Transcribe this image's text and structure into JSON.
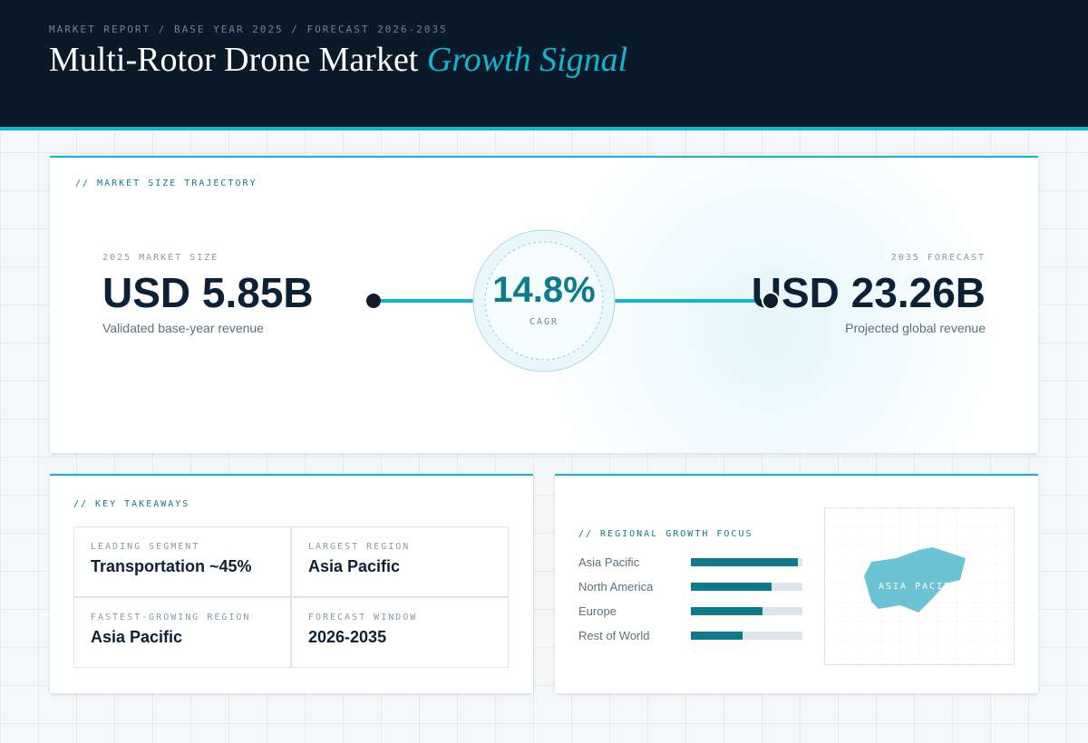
{
  "header": {
    "eyebrow": "MARKET REPORT / BASE YEAR 2025 / FORECAST 2026-2035",
    "title": "Multi-Rotor Drone Market",
    "title_accent": "Growth Signal"
  },
  "trajectory": {
    "label": "// MARKET SIZE TRAJECTORY",
    "start": {
      "label": "2025 MARKET SIZE",
      "value": "USD 5.85B",
      "caption": "Validated base-year revenue"
    },
    "cagr": {
      "value": "14.8%",
      "label": "CAGR"
    },
    "end": {
      "label": "2035 FORECAST",
      "value": "USD 23.26B",
      "caption": "Projected global revenue"
    }
  },
  "takeaways": {
    "label": "// KEY TAKEAWAYS",
    "cells": [
      {
        "label": "LEADING SEGMENT",
        "value": "Transportation ~45%"
      },
      {
        "label": "LARGEST REGION",
        "value": "Asia Pacific"
      },
      {
        "label": "FASTEST-GROWING REGION",
        "value": "Asia Pacific"
      },
      {
        "label": "FORECAST WINDOW",
        "value": "2026-2035"
      }
    ]
  },
  "regional": {
    "label": "// REGIONAL GROWTH FOCUS",
    "xlim": [
      0,
      100
    ],
    "color": "#0e7a8c",
    "categories": [
      "Asia Pacific",
      "North America",
      "Europe",
      "Rest of World"
    ],
    "values": [
      96,
      72,
      64,
      46
    ],
    "map_label": "ASIA PACIFIC"
  }
}
